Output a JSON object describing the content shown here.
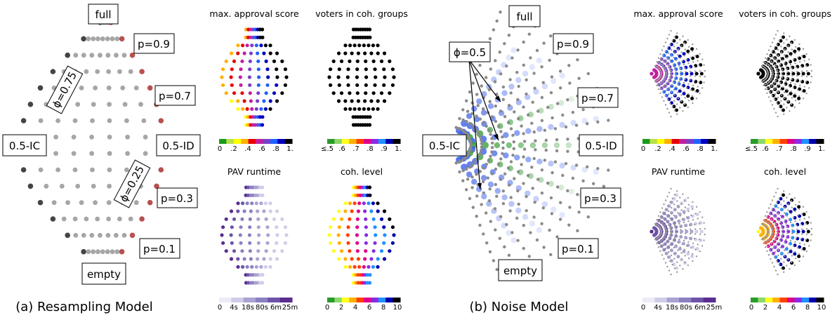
{
  "colors": {
    "approval": [
      "#1a9a1a",
      "#b8e04a",
      "#ffff00",
      "#ffb000",
      "#e80000",
      "#c020a0",
      "#7a40c8",
      "#2060ff",
      "#0000c0",
      "#000000"
    ],
    "cohesion": [
      "#2a9a2a",
      "#8cd86a",
      "#ffff20",
      "#ffb000",
      "#ff4000",
      "#e0008a",
      "#8a2be2",
      "#2090ff",
      "#0000aa",
      "#000000"
    ],
    "runtime": [
      "#ecebf6",
      "#cfcde8",
      "#a9a3d3",
      "#8b80c0",
      "#6e54a8",
      "#5a2d8f"
    ],
    "resample_outer_dark": "#444444",
    "resample_outer_red": "#b85050",
    "grey": "#a6a6a6",
    "noise_blue": "#3a5ee8",
    "noise_green": "#3aa03a"
  },
  "captions": {
    "a": "(a) Resampling Model",
    "b": "(b) Noise Model"
  },
  "labels": {
    "full": "full",
    "empty": "empty",
    "ic": "0.5-IC",
    "id": "0.5-ID",
    "p09": "p=0.9",
    "p07": "p=0.7",
    "p03": "p=0.3",
    "p01": "p=0.1",
    "phi075": "ϕ=0.75",
    "phi025": "ϕ=0.25",
    "phi05": "ϕ=0.5"
  },
  "panel_titles": {
    "max_approval": "max. approval score",
    "voters_coh": "voters in coh. groups",
    "pav_runtime": "PAV runtime",
    "coh_level": "coh. level"
  },
  "chart_data": [
    {
      "type": "scatter",
      "title": "(a) Resampling Model",
      "note": "map of elections; points rendered as dots"
    },
    {
      "type": "scatter",
      "title": "max. approval score",
      "colorbar_ticks": [
        "0",
        ".2",
        ".4",
        ".6",
        ".8",
        "1."
      ]
    },
    {
      "type": "scatter",
      "title": "voters in coh. groups",
      "colorbar_ticks": [
        "≤.5",
        ".6",
        ".7",
        ".8",
        ".9",
        "1."
      ]
    },
    {
      "type": "scatter",
      "title": "PAV runtime",
      "colorbar_ticks": [
        "0",
        "4s",
        "18s",
        "80s",
        "6m",
        "25m"
      ]
    },
    {
      "type": "scatter",
      "title": "coh. level",
      "colorbar_ticks": [
        "0",
        "2",
        "4",
        "6",
        "8",
        "10"
      ]
    },
    {
      "type": "scatter",
      "title": "(b) Noise Model",
      "note": "map of elections; points rendered as dots"
    }
  ]
}
